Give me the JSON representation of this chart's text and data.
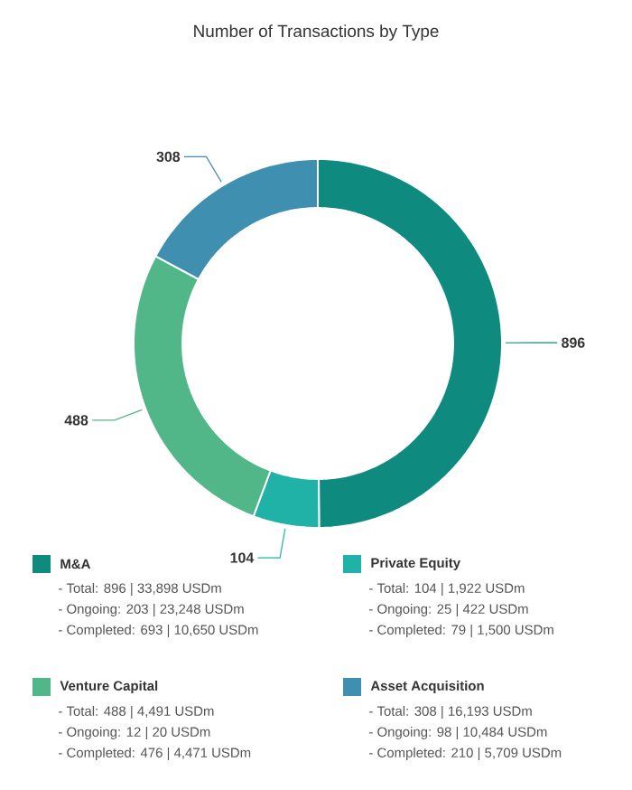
{
  "chart_data": {
    "type": "donut",
    "title": "Number of Transactions by Type",
    "categories": [
      "M&A",
      "Private Equity",
      "Venture Capital",
      "Asset Acquisition"
    ],
    "values": [
      896,
      104,
      488,
      308
    ],
    "colors": [
      "#0e8a7e",
      "#20b2a6",
      "#52b788",
      "#3e8fb0"
    ],
    "data_labels": true,
    "legend": "bottom",
    "annotations": [
      "- Total: 896 | 33,898 USDm",
      "- Ongoing: 203 | 23,248 USDm",
      "- Completed: 693 | 10,650 USDm",
      "- Total: 104 | 1,922 USDm",
      "- Ongoing: 25 | 422 USDm",
      "- Completed: 79 | 1,500 USDm",
      "- Total: 488 | 4,491 USDm",
      "- Ongoing: 12 | 20 USDm",
      "- Completed: 476 | 4,471 USDm",
      "- Total: 308 | 16,193 USDm",
      "- Ongoing: 98 | 10,484 USDm",
      "- Completed: 210 | 5,709 USDm"
    ]
  }
}
